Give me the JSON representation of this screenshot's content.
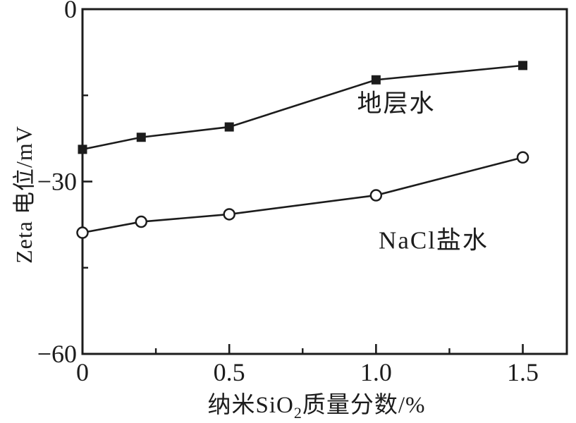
{
  "figure": {
    "background": "#ffffff",
    "ink_color": "#1c1c1c"
  },
  "chart_data": {
    "type": "line",
    "title": "",
    "xlabel": "纳米SiO2质量分数/%",
    "xlabel_parts": {
      "prefix": "纳米SiO",
      "sub": "2",
      "suffix": "质量分数/%"
    },
    "ylabel": "Zeta 电位/mV",
    "xlim": [
      0,
      1.65
    ],
    "ylim": [
      -60,
      0
    ],
    "grid": false,
    "legend_position": "inline-annotations",
    "x_major_ticks": [
      0,
      0.5,
      1.0,
      1.5
    ],
    "x_tick_labels": [
      "0",
      "0.5",
      "1.0",
      "1.5"
    ],
    "x_minor_ticks": [
      0.25,
      0.75,
      1.25
    ],
    "y_major_ticks": [
      0,
      -30,
      -60
    ],
    "y_tick_labels": [
      "0",
      "−30",
      "−60"
    ],
    "y_minor_ticks": [
      -15,
      -45
    ],
    "x": [
      0,
      0.2,
      0.5,
      1.0,
      1.5
    ],
    "series": [
      {
        "id": "formation-water",
        "name": "地层水",
        "marker": "filled-square",
        "values": [
          -24.4,
          -22.3,
          -20.5,
          -12.3,
          -9.8
        ]
      },
      {
        "id": "nacl-brine",
        "name": "NaCl盐水",
        "marker": "open-circle",
        "values": [
          -38.9,
          -37.0,
          -35.7,
          -32.4,
          -25.8
        ]
      }
    ]
  }
}
